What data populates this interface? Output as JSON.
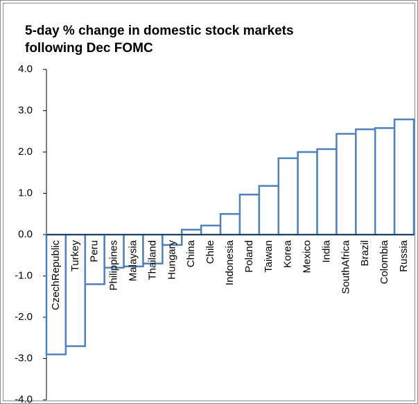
{
  "chart_data": {
    "type": "bar",
    "title": [
      "5-day % change in domestic stock markets",
      "following Dec FOMC"
    ],
    "categories": [
      "CzechRepublic",
      "Turkey",
      "Peru",
      "Philippines",
      "Malaysia",
      "Thailand",
      "Hungary",
      "China",
      "Chile",
      "Indonesia",
      "Poland",
      "Taiwan",
      "Korea",
      "Mexico",
      "India",
      "SouthAfrica",
      "Brazil",
      "Colombia",
      "Russia"
    ],
    "values": [
      -2.9,
      -2.7,
      -1.2,
      -0.8,
      -0.77,
      -0.7,
      -0.25,
      0.12,
      0.22,
      0.5,
      0.97,
      1.18,
      1.85,
      2.0,
      2.07,
      2.44,
      2.55,
      2.58,
      2.79
    ],
    "color": "#4f81bd",
    "ylim": [
      -4,
      4
    ],
    "yticks": [
      {
        "value": -4,
        "label": "-4.0"
      },
      {
        "value": -3,
        "label": "-3.0"
      },
      {
        "value": -2,
        "label": "-2.0"
      },
      {
        "value": -1,
        "label": "-1.0"
      },
      {
        "value": 0,
        "label": "0.0"
      },
      {
        "value": 1,
        "label": "1.0"
      },
      {
        "value": 2,
        "label": "2.0"
      },
      {
        "value": 3,
        "label": "3.0"
      },
      {
        "value": 4,
        "label": "4.0"
      }
    ],
    "grid": false
  }
}
